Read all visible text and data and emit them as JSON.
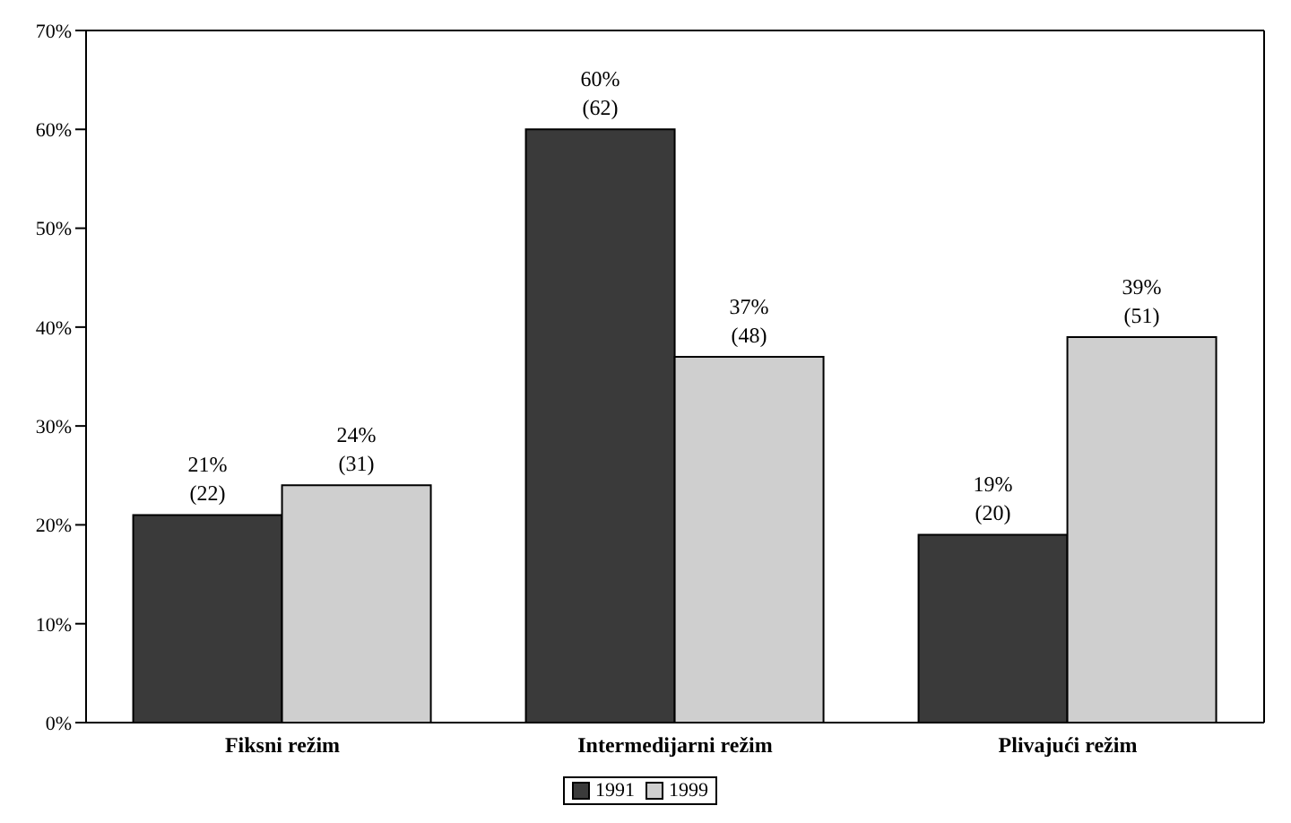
{
  "chart_data": {
    "type": "bar",
    "categories": [
      "Fiksni režim",
      "Intermedijarni režim",
      "Plivajući režim"
    ],
    "series": [
      {
        "name": "1991",
        "color": "#3a3a3a",
        "values": [
          21,
          60,
          19
        ],
        "value_labels": [
          "21%\n(22)",
          "60%\n(62)",
          "19%\n(20)"
        ]
      },
      {
        "name": "1999",
        "color": "#cfcfcf",
        "values": [
          24,
          37,
          39
        ],
        "value_labels": [
          "24%\n(31)",
          "37%\n(48)",
          "39%\n(51)"
        ]
      }
    ],
    "ylim": [
      0,
      70
    ],
    "yticks": [
      {
        "value": 0,
        "label": "0%"
      },
      {
        "value": 10,
        "label": "10%"
      },
      {
        "value": 20,
        "label": "20%"
      },
      {
        "value": 30,
        "label": "30%"
      },
      {
        "value": 40,
        "label": "40%"
      },
      {
        "value": 50,
        "label": "50%"
      },
      {
        "value": 60,
        "label": "60%"
      },
      {
        "value": 70,
        "label": "70%"
      }
    ],
    "grid": false,
    "legend": "bottom"
  }
}
